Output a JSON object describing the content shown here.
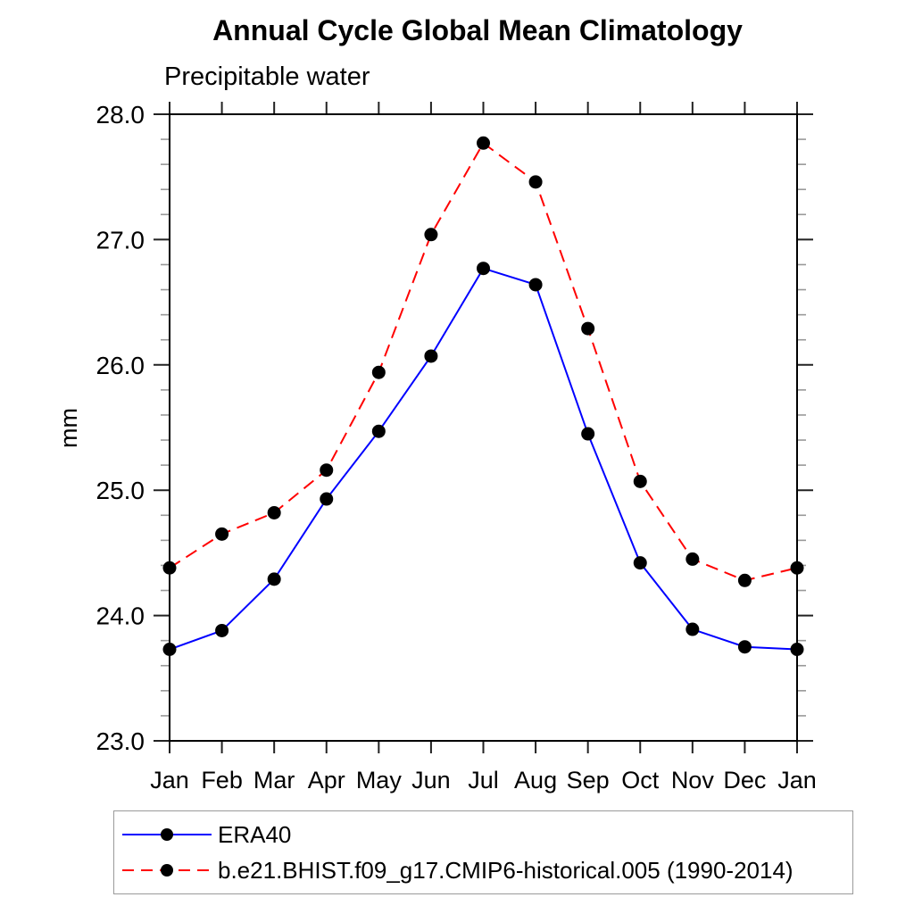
{
  "chart": {
    "title": "Annual Cycle Global Mean Climatology",
    "subtitle": "Precipitable water",
    "ylabel": "mm"
  },
  "chart_data": {
    "type": "line",
    "title": "Annual Cycle Global Mean Climatology",
    "subtitle": "Precipitable water",
    "xlabel": "",
    "ylabel": "mm",
    "categories": [
      "Jan",
      "Feb",
      "Mar",
      "Apr",
      "May",
      "Jun",
      "Jul",
      "Aug",
      "Sep",
      "Oct",
      "Nov",
      "Dec",
      "Jan"
    ],
    "ylim": [
      23.0,
      28.0
    ],
    "ytick_major": [
      23.0,
      24.0,
      25.0,
      26.0,
      27.0,
      28.0
    ],
    "ytick_labels": [
      "23.0",
      "24.0",
      "25.0",
      "26.0",
      "27.0",
      "28.0"
    ],
    "ytick_minor_step": 0.2,
    "grid": "off",
    "legend_position": "bottom-left-box",
    "series": [
      {
        "name": "ERA40",
        "color": "#0000ff",
        "line_style": "solid",
        "marker": "filled-circle",
        "marker_color": "#000000",
        "values": [
          23.73,
          23.88,
          24.29,
          24.93,
          25.47,
          26.07,
          26.77,
          26.64,
          25.45,
          24.42,
          23.89,
          23.75,
          23.73
        ]
      },
      {
        "name": "b.e21.BHIST.f09_g17.CMIP6-historical.005 (1990-2014)",
        "color": "#ff0000",
        "line_style": "dashed",
        "marker": "filled-circle",
        "marker_color": "#000000",
        "values": [
          24.38,
          24.65,
          24.82,
          25.16,
          25.94,
          27.04,
          27.77,
          27.46,
          26.29,
          25.07,
          24.45,
          24.28,
          24.38
        ]
      }
    ]
  },
  "colors": {
    "frame": "#000000",
    "major_tick": "#222222",
    "minor_tick": "#999999",
    "legend_border": "#9a9a9a",
    "text": "#000000"
  }
}
